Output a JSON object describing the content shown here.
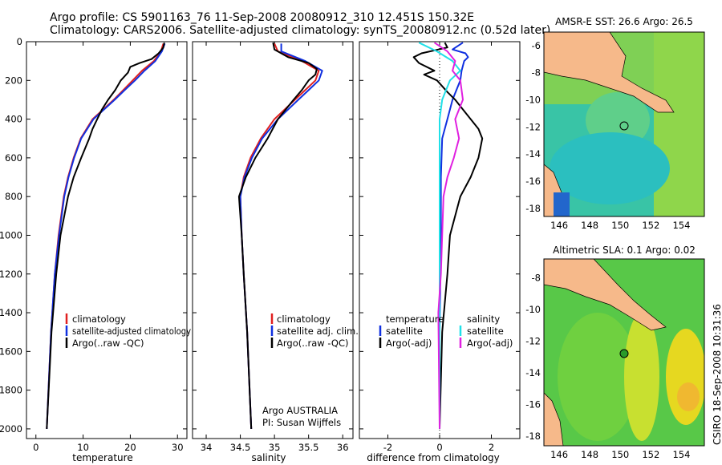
{
  "header": {
    "line1": "Argo profile: CS 5901163_76 11-Sep-2008 20080912_310 12.451S 150.32E",
    "line2": "Climatology: CARS2006. Satellite-adjusted climatology: synTS_20080912.nc (0.52d later)"
  },
  "colors": {
    "climatology": "#e02020",
    "satellite": "#1030e0",
    "argo": "#000000",
    "sal_sat": "#20e0e8",
    "sal_argo": "#e020e0"
  },
  "chart_data": [
    {
      "id": "temperature",
      "type": "line",
      "xlabel": "temperature",
      "xlim": [
        -2,
        32
      ],
      "ylim": [
        2050,
        0
      ],
      "xticks": [
        0,
        10,
        20,
        30
      ],
      "yticks": [
        0,
        200,
        400,
        600,
        800,
        1000,
        1200,
        1400,
        1600,
        1800,
        2000
      ],
      "legend": [
        "climatology",
        "satellite-adjusted climatology",
        "Argo(..raw -QC)"
      ],
      "series": [
        {
          "name": "climatology",
          "color": "#e02020",
          "depth": [
            10,
            50,
            100,
            150,
            200,
            250,
            300,
            400,
            500,
            600,
            700,
            800,
            1000,
            1200,
            1500,
            2000
          ],
          "values": [
            27.0,
            26.5,
            25.0,
            22.5,
            20.5,
            18.5,
            16.5,
            12.0,
            9.5,
            8.0,
            6.8,
            5.9,
            4.8,
            4.0,
            3.2,
            2.3
          ]
        },
        {
          "name": "satellite-adjusted climatology",
          "color": "#1030e0",
          "depth": [
            10,
            50,
            100,
            150,
            200,
            250,
            300,
            400,
            500,
            600,
            700,
            800,
            1000,
            1200,
            1500,
            2000
          ],
          "values": [
            27.3,
            26.7,
            25.3,
            23.0,
            21.0,
            18.8,
            16.7,
            12.2,
            9.6,
            8.1,
            6.9,
            6.0,
            4.9,
            4.0,
            3.2,
            2.3
          ]
        },
        {
          "name": "Argo(..raw -QC)",
          "color": "#000000",
          "depth": [
            5,
            30,
            60,
            90,
            110,
            130,
            160,
            200,
            250,
            300,
            350,
            400,
            450,
            500,
            600,
            700,
            800,
            900,
            1000,
            1200,
            1500,
            2000
          ],
          "values": [
            27.2,
            27.0,
            26.0,
            24.5,
            22.0,
            20.0,
            19.5,
            18.0,
            16.8,
            15.3,
            14.0,
            13.0,
            12.0,
            11.3,
            9.6,
            8.0,
            6.8,
            6.0,
            5.2,
            4.3,
            3.3,
            2.3
          ]
        }
      ]
    },
    {
      "id": "salinity",
      "type": "line",
      "xlabel": "salinity",
      "xlim": [
        33.8,
        36.15
      ],
      "ylim": [
        2050,
        0
      ],
      "xticks": [
        34,
        34.5,
        35,
        35.5,
        36
      ],
      "legend": [
        "climatology",
        "satellite adj. clim.",
        "Argo(..raw -QC)"
      ],
      "series": [
        {
          "name": "climatology",
          "color": "#e02020",
          "depth": [
            10,
            50,
            100,
            150,
            200,
            250,
            300,
            400,
            500,
            600,
            700,
            800,
            1000,
            1200,
            1500,
            2000
          ],
          "values": [
            35.0,
            35.05,
            35.4,
            35.65,
            35.6,
            35.45,
            35.3,
            35.0,
            34.8,
            34.65,
            34.55,
            34.5,
            34.52,
            34.55,
            34.6,
            34.66
          ]
        },
        {
          "name": "satellite adj. clim.",
          "color": "#1030e0",
          "depth": [
            10,
            50,
            100,
            150,
            200,
            250,
            300,
            400,
            500,
            600,
            700,
            800,
            1000,
            1200,
            1500,
            2000
          ],
          "values": [
            35.1,
            35.1,
            35.45,
            35.7,
            35.65,
            35.5,
            35.35,
            35.05,
            34.82,
            34.67,
            34.56,
            34.5,
            34.52,
            34.55,
            34.6,
            34.66
          ]
        },
        {
          "name": "Argo(..raw -QC)",
          "color": "#000000",
          "depth": [
            5,
            40,
            80,
            110,
            140,
            170,
            200,
            250,
            300,
            400,
            500,
            600,
            700,
            800,
            900,
            1000,
            1200,
            1500,
            2000
          ],
          "values": [
            34.98,
            35.0,
            35.2,
            35.5,
            35.62,
            35.6,
            35.5,
            35.4,
            35.28,
            35.05,
            34.9,
            34.72,
            34.58,
            34.48,
            34.5,
            34.52,
            34.55,
            34.6,
            34.66
          ]
        }
      ],
      "annotations": [
        "Argo AUSTRALIA",
        "PI: Susan Wijffels"
      ]
    },
    {
      "id": "difference",
      "type": "line",
      "xlabel": "difference from climatology",
      "xlim": [
        -3.1,
        3.1
      ],
      "ylim": [
        2050,
        0
      ],
      "xticks": [
        -2,
        0,
        2
      ],
      "legend_headers": [
        "temperature",
        "salinity"
      ],
      "legend": [
        "satellite",
        "Argo(-adj)",
        "satellite",
        "Argo(-adj)"
      ],
      "series": [
        {
          "name": "temperature satellite",
          "color": "#1030e0",
          "depth": [
            5,
            40,
            60,
            80,
            100,
            150,
            200,
            300,
            400,
            500,
            700,
            1000,
            1500,
            2000
          ],
          "values": [
            0.9,
            0.5,
            1.0,
            1.1,
            0.95,
            0.85,
            0.8,
            0.5,
            0.3,
            0.1,
            0.05,
            0.05,
            0.0,
            0.0
          ]
        },
        {
          "name": "temperature Argo(-adj)",
          "color": "#000000",
          "depth": [
            5,
            30,
            60,
            80,
            110,
            150,
            170,
            200,
            260,
            300,
            350,
            400,
            450,
            500,
            600,
            700,
            800,
            1000,
            1200,
            1500,
            2000
          ],
          "values": [
            0.2,
            0.3,
            -0.7,
            -1.0,
            -0.8,
            -0.2,
            -0.6,
            -0.1,
            0.3,
            0.6,
            0.9,
            1.2,
            1.5,
            1.65,
            1.5,
            1.2,
            0.8,
            0.4,
            0.3,
            0.1,
            0.0
          ]
        },
        {
          "name": "salinity satellite",
          "color": "#20e0e8",
          "depth": [
            5,
            50,
            100,
            150,
            200,
            300,
            400,
            500,
            600,
            800,
            1000,
            1500,
            2000
          ],
          "values": [
            -0.8,
            -0.1,
            0.5,
            0.8,
            0.4,
            0.1,
            0.0,
            0.0,
            0.0,
            0.0,
            0.0,
            0.0,
            0.0
          ]
        },
        {
          "name": "salinity Argo(-adj)",
          "color": "#e020e0",
          "depth": [
            5,
            50,
            100,
            150,
            200,
            300,
            400,
            500,
            600,
            700,
            800,
            1000,
            1200,
            1400,
            2000
          ],
          "values": [
            -0.2,
            0.3,
            0.6,
            0.5,
            0.8,
            0.9,
            0.6,
            0.75,
            0.55,
            0.3,
            0.15,
            0.1,
            0.05,
            -0.05,
            0.0
          ]
        }
      ]
    },
    {
      "id": "sst_map",
      "type": "heatmap",
      "title": "AMSR-E SST: 26.6 Argo: 26.5",
      "xticks": [
        146,
        148,
        150,
        152,
        154
      ],
      "yticks": [
        -6,
        -8,
        -10,
        -12,
        -14,
        -16,
        -18
      ],
      "marker": {
        "lon": 150.32,
        "lat": -12.451
      }
    },
    {
      "id": "sla_map",
      "type": "heatmap",
      "title": "Altimetric SLA: 0.1 Argo: 0.02",
      "xticks": [
        146,
        148,
        150,
        152,
        154
      ],
      "yticks": [
        -8,
        -10,
        -12,
        -14,
        -16,
        -18
      ],
      "marker": {
        "lon": 150.32,
        "lat": -12.451
      }
    }
  ],
  "footer": {
    "credit": "CSIRO 18-Sep-2008 10:31:36"
  }
}
